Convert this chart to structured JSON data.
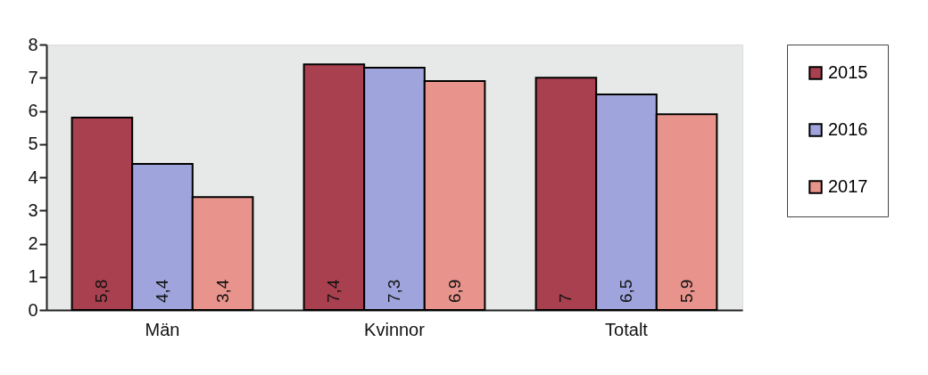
{
  "chart_data": {
    "type": "bar",
    "categories": [
      "Män",
      "Kvinnor",
      "Totalt"
    ],
    "series": [
      {
        "name": "2015",
        "color": "#a8404f",
        "values": [
          5.8,
          7.4,
          7.0
        ],
        "value_labels": [
          "5,8",
          "7,4",
          "7"
        ]
      },
      {
        "name": "2016",
        "color": "#9fa5dc",
        "values": [
          4.4,
          7.3,
          6.5
        ],
        "value_labels": [
          "4,4",
          "7,3",
          "6,5"
        ]
      },
      {
        "name": "2017",
        "color": "#e8948c",
        "values": [
          3.4,
          6.9,
          5.9
        ],
        "value_labels": [
          "3,4",
          "6,9",
          "5,9"
        ]
      }
    ],
    "ylim": [
      0,
      8
    ],
    "yticks": [
      0,
      1,
      2,
      3,
      4,
      5,
      6,
      7,
      8
    ],
    "grid": false,
    "legend": "right"
  }
}
